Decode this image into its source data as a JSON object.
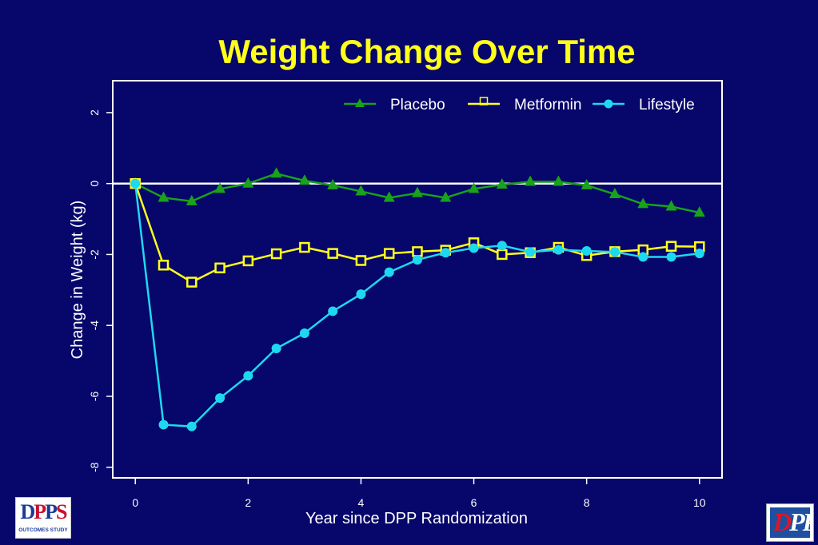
{
  "slide": {
    "background": "#06066b"
  },
  "chart_data": {
    "type": "line",
    "title": "Weight Change Over Time",
    "xlabel": "Year since DPP Randomization",
    "ylabel": "Change in Weight (kg)",
    "xlim": [
      -0.4,
      10.4
    ],
    "ylim": [
      -8.3,
      2.9
    ],
    "xticks": [
      0,
      2,
      4,
      6,
      8,
      10
    ],
    "yticks": [
      2,
      0,
      -2,
      -4,
      -6,
      -8
    ],
    "zero_line": true,
    "grid": false,
    "legend_position": "top-right",
    "x": [
      0,
      0.5,
      1,
      1.5,
      2,
      2.5,
      3,
      3.5,
      4,
      4.5,
      5,
      5.5,
      6,
      6.5,
      7,
      7.5,
      8,
      8.5,
      9,
      9.5,
      10
    ],
    "series": [
      {
        "name": "Placebo",
        "color": "#19a21a",
        "marker": "triangle",
        "values": [
          0.0,
          -0.4,
          -0.5,
          -0.15,
          0.0,
          0.28,
          0.08,
          -0.05,
          -0.22,
          -0.4,
          -0.27,
          -0.4,
          -0.15,
          -0.03,
          0.05,
          0.05,
          -0.05,
          -0.3,
          -0.58,
          -0.65,
          -0.82
        ]
      },
      {
        "name": "Metformin",
        "color": "#ffff1a",
        "marker": "square",
        "values": [
          0.0,
          -2.3,
          -2.78,
          -2.38,
          -2.18,
          -1.98,
          -1.8,
          -1.97,
          -2.17,
          -1.97,
          -1.92,
          -1.88,
          -1.67,
          -2.0,
          -1.95,
          -1.8,
          -2.03,
          -1.92,
          -1.87,
          -1.77,
          -1.78
        ]
      },
      {
        "name": "Lifestyle",
        "color": "#1ed8f0",
        "marker": "circle",
        "values": [
          0.0,
          -6.8,
          -6.85,
          -6.05,
          -5.42,
          -4.65,
          -4.22,
          -3.6,
          -3.12,
          -2.5,
          -2.15,
          -1.95,
          -1.82,
          -1.75,
          -1.93,
          -1.87,
          -1.9,
          -1.93,
          -2.07,
          -2.07,
          -1.97
        ]
      }
    ]
  },
  "logos": {
    "left": {
      "name": "dpp-outcomes-study-logo",
      "letters": [
        "D",
        "P",
        "P",
        "S"
      ],
      "caption": "OUTCOMES STUDY"
    },
    "right": {
      "name": "dpp-logo",
      "letters_a": "D",
      "letters_b": "PP"
    }
  }
}
